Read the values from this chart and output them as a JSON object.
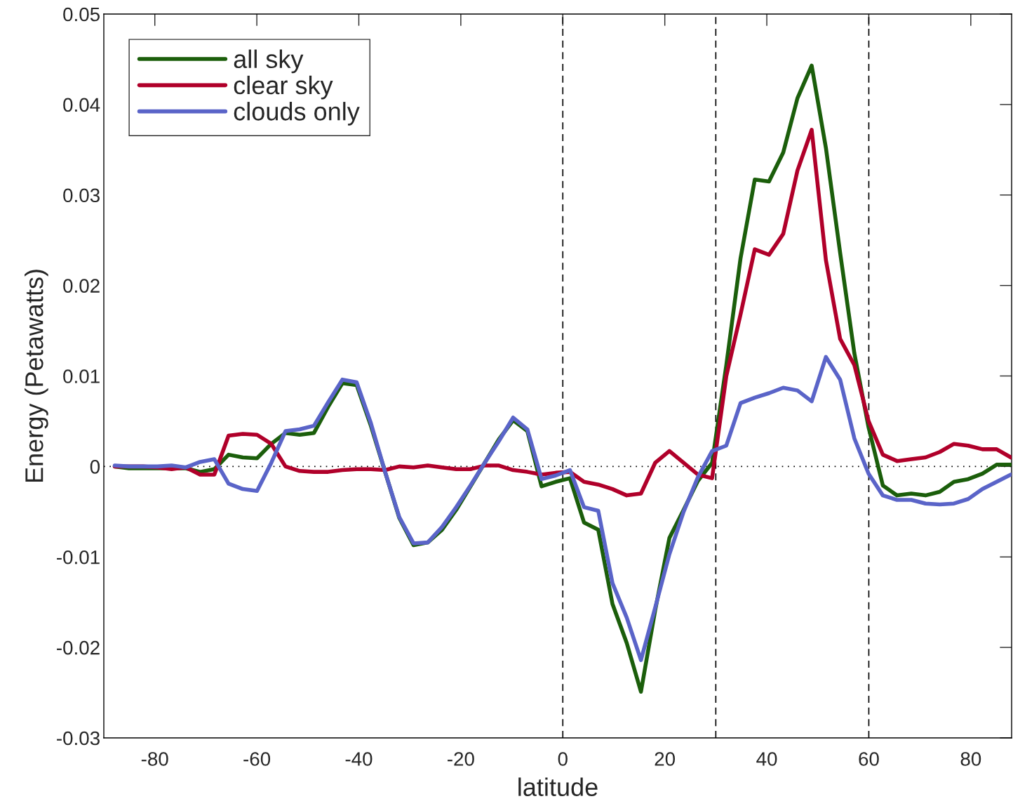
{
  "chart_data": {
    "type": "line",
    "xlabel": "latitude",
    "ylabel": "Energy (Petawatts)",
    "x": [
      -87.86,
      -85.07,
      -82.28,
      -79.49,
      -76.7,
      -73.91,
      -71.12,
      -68.33,
      -65.54,
      -62.75,
      -59.96,
      -57.17,
      -54.38,
      -51.59,
      -48.8,
      -46.01,
      -43.22,
      -40.43,
      -37.64,
      -34.85,
      -32.06,
      -29.27,
      -26.48,
      -23.69,
      -20.9,
      -18.11,
      -15.32,
      -12.53,
      -9.74,
      -6.95,
      -4.16,
      -1.4,
      1.4,
      4.16,
      6.95,
      9.74,
      12.53,
      15.32,
      18.11,
      20.9,
      23.69,
      26.48,
      29.27,
      32.06,
      34.85,
      37.64,
      40.43,
      43.22,
      46.01,
      48.8,
      51.59,
      54.38,
      57.17,
      59.96,
      62.75,
      65.54,
      68.33,
      71.12,
      73.91,
      76.7,
      79.49,
      82.28,
      85.07,
      87.86
    ],
    "series": [
      {
        "name": "all sky",
        "color": "#1b5e0b",
        "values": [
          0,
          -0.0002,
          -0.0002,
          -0.0002,
          -0.0002,
          -0.0002,
          -0.0006,
          -0.0003,
          0.0013,
          0.001,
          0.0009,
          0.0025,
          0.0037,
          0.0035,
          0.0037,
          0.0066,
          0.0092,
          0.009,
          0.0045,
          -0.0006,
          -0.0057,
          -0.0087,
          -0.0084,
          -0.007,
          -0.0048,
          -0.0022,
          0.0004,
          0.003,
          0.0051,
          0.0039,
          -0.0022,
          -0.0017,
          -0.0013,
          -0.0062,
          -0.007,
          -0.0152,
          -0.0195,
          -0.0249,
          -0.0159,
          -0.0079,
          -0.0048,
          -0.0016,
          0.0004,
          0.0112,
          0.023,
          0.0317,
          0.0315,
          0.0347,
          0.0407,
          0.0443,
          0.0352,
          0.0236,
          0.0125,
          0.0043,
          -0.0021,
          -0.0032,
          -0.003,
          -0.0032,
          -0.0028,
          -0.0017,
          -0.0014,
          -0.0008,
          0.0002,
          0.0002
        ]
      },
      {
        "name": "clear sky",
        "color": "#b0002a",
        "values": [
          0,
          0,
          0,
          -0.0001,
          -0.0003,
          -0.0001,
          -0.0009,
          -0.0009,
          0.0034,
          0.0036,
          0.0035,
          0.0025,
          0,
          -0.0005,
          -0.0006,
          -0.0006,
          -0.0004,
          -0.0003,
          -0.0003,
          -0.0004,
          0,
          -0.0001,
          0.0001,
          -0.0001,
          -0.0003,
          -0.0003,
          0.0001,
          0.0001,
          -0.0004,
          -0.0006,
          -0.0009,
          -0.0007,
          -0.0006,
          -0.0017,
          -0.002,
          -0.0025,
          -0.0032,
          -0.003,
          0.0004,
          0.0017,
          0.0004,
          -0.0009,
          -0.0013,
          0.01,
          0.0168,
          0.024,
          0.0234,
          0.0257,
          0.0327,
          0.0372,
          0.0228,
          0.0141,
          0.0112,
          0.005,
          0.0013,
          0.0006,
          0.0008,
          0.001,
          0.0016,
          0.0025,
          0.0023,
          0.0019,
          0.0019,
          0.001
        ]
      },
      {
        "name": "clouds only",
        "color": "#5a64c8",
        "values": [
          0.0001,
          0,
          0,
          0,
          0.0001,
          -0.0001,
          0.0005,
          0.0008,
          -0.0019,
          -0.0025,
          -0.0027,
          0.0004,
          0.0039,
          0.0041,
          0.0045,
          0.0071,
          0.0096,
          0.0093,
          0.0048,
          -0.0006,
          -0.0056,
          -0.0085,
          -0.0084,
          -0.0067,
          -0.0045,
          -0.0021,
          0.0004,
          0.0028,
          0.0054,
          0.0041,
          -0.0014,
          -0.001,
          -0.0004,
          -0.0045,
          -0.0049,
          -0.0129,
          -0.0167,
          -0.0214,
          -0.0156,
          -0.0097,
          -0.005,
          -0.0012,
          0.0017,
          0.0023,
          0.007,
          0.0076,
          0.0081,
          0.0087,
          0.0084,
          0.0072,
          0.0121,
          0.0096,
          0.0031,
          -0.0008,
          -0.0032,
          -0.0037,
          -0.0037,
          -0.0041,
          -0.0042,
          -0.0041,
          -0.0036,
          -0.0025,
          -0.0017,
          -0.0009
        ]
      }
    ],
    "xlim": [
      -90,
      88
    ],
    "xticks": [
      -80,
      -60,
      -40,
      -20,
      0,
      20,
      40,
      60,
      80
    ],
    "ylim": [
      -0.03,
      0.05
    ],
    "yticks": [
      -0.03,
      -0.02,
      -0.01,
      0,
      0.01,
      0.02,
      0.03,
      0.04,
      0.05
    ],
    "ref_lines": [
      {
        "axis": "x",
        "value": 0,
        "color": "#000000",
        "line_style": "dashed"
      },
      {
        "axis": "x",
        "value": 30,
        "color": "#000000",
        "line_style": "dashed"
      },
      {
        "axis": "x",
        "value": 60,
        "color": "#000000",
        "line_style": "dashed"
      },
      {
        "axis": "y",
        "value": 0,
        "color": "#000000",
        "line_style": "dotted"
      }
    ],
    "legend": "top left",
    "grid": false,
    "marker": "none",
    "line_style": "solid"
  }
}
